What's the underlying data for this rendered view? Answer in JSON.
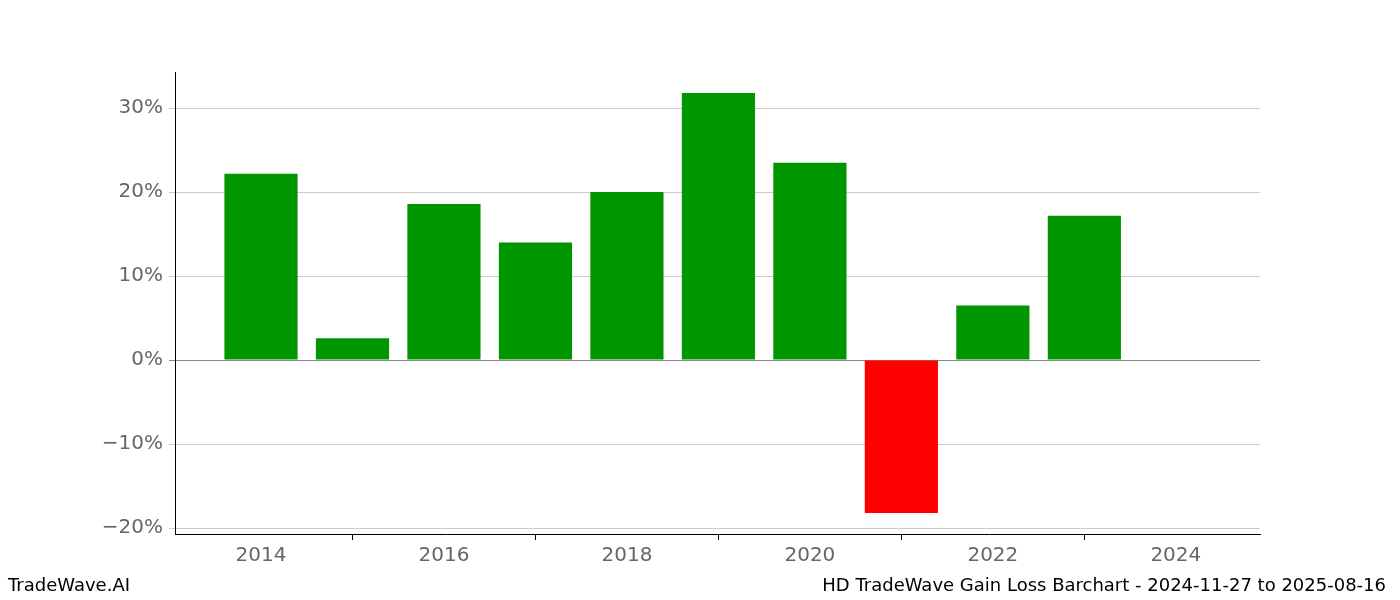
{
  "chart_data": {
    "type": "bar",
    "x": [
      2014,
      2015,
      2016,
      2017,
      2018,
      2019,
      2020,
      2021,
      2022,
      2023
    ],
    "values": [
      22.2,
      2.6,
      18.6,
      14.0,
      20.0,
      31.8,
      23.5,
      -18.2,
      6.5,
      17.2
    ],
    "colors": [
      "#009600",
      "#009600",
      "#009600",
      "#009600",
      "#009600",
      "#009600",
      "#009600",
      "#ff0000",
      "#009600",
      "#009600"
    ],
    "xlim": [
      2013.06,
      2024.92
    ],
    "xticks": [
      2014,
      2016,
      2018,
      2020,
      2022,
      2024
    ],
    "ylim": [
      -20.7,
      34.3
    ],
    "yticks": [
      {
        "value": -20,
        "label": "−20%"
      },
      {
        "value": -10,
        "label": "−10%"
      },
      {
        "value": 0,
        "label": "0%"
      },
      {
        "value": 10,
        "label": "10%"
      },
      {
        "value": 20,
        "label": "20%"
      },
      {
        "value": 30,
        "label": "30%"
      }
    ],
    "grid": true,
    "annotations": [
      "TradeWave.AI",
      "HD TradeWave Gain Loss Barchart - 2024-11-27 to 2025-08-16"
    ]
  }
}
